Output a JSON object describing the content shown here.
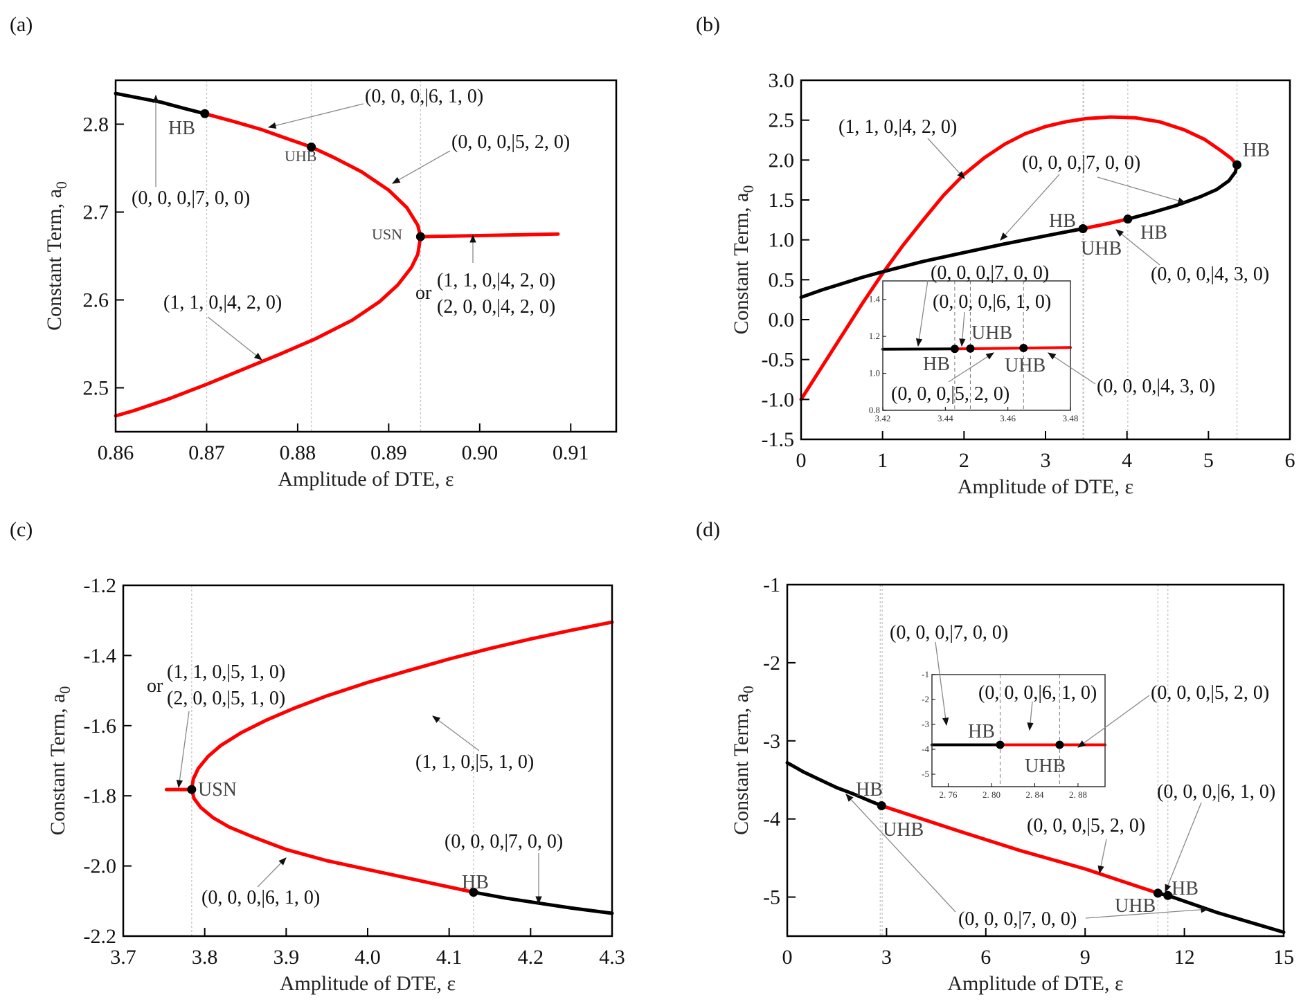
{
  "colors": {
    "stable": "#000000",
    "unstable": "#ff0000",
    "guide": "#c8c8c8",
    "arrow": "#888888"
  },
  "chart_data": [
    {
      "panel": "(a)",
      "type": "line",
      "xlabel": "Amplitude of DTE, ε",
      "ylabel": "Constant Term, a",
      "ylabel_sub": "0",
      "xlim": [
        0.86,
        0.915
      ],
      "ylim": [
        2.45,
        2.85
      ],
      "xticks": [
        0.86,
        0.87,
        0.88,
        0.89,
        0.9,
        0.91
      ],
      "xtick_labels": [
        "0.86",
        "0.87",
        "0.88",
        "0.89",
        "0.90",
        "0.91"
      ],
      "yticks": [
        2.5,
        2.6,
        2.7,
        2.8
      ],
      "ytick_labels": [
        "2.5",
        "2.6",
        "2.7",
        "2.8"
      ],
      "guides_x": [
        0.87,
        0.8815,
        0.8935
      ],
      "series": [
        {
          "name": "stable",
          "color": "stable",
          "points": [
            [
              0.86,
              2.835
            ],
            [
              0.8625,
              2.83
            ],
            [
              0.865,
              2.825
            ],
            [
              0.8675,
              2.818
            ],
            [
              0.8698,
              2.812
            ]
          ]
        },
        {
          "name": "unstable-upper",
          "color": "unstable",
          "points": [
            [
              0.8698,
              2.812
            ],
            [
              0.873,
              2.803
            ],
            [
              0.876,
              2.794
            ],
            [
              0.879,
              2.783
            ],
            [
              0.8815,
              2.774
            ],
            [
              0.884,
              2.762
            ],
            [
              0.887,
              2.746
            ],
            [
              0.89,
              2.725
            ],
            [
              0.892,
              2.705
            ],
            [
              0.8932,
              2.685
            ],
            [
              0.8935,
              2.672
            ]
          ]
        },
        {
          "name": "unstable-lower",
          "color": "unstable",
          "points": [
            [
              0.8935,
              2.672
            ],
            [
              0.8932,
              2.652
            ],
            [
              0.8925,
              2.637
            ],
            [
              0.891,
              2.617
            ],
            [
              0.889,
              2.598
            ],
            [
              0.886,
              2.577
            ],
            [
              0.882,
              2.556
            ],
            [
              0.878,
              2.538
            ],
            [
              0.874,
              2.521
            ],
            [
              0.87,
              2.504
            ],
            [
              0.866,
              2.488
            ],
            [
              0.862,
              2.474
            ],
            [
              0.86,
              2.468
            ]
          ]
        },
        {
          "name": "unstable-branch",
          "color": "unstable",
          "points": [
            [
              0.8935,
              2.672
            ],
            [
              0.9086,
              2.675
            ]
          ]
        }
      ],
      "markers": [
        {
          "x": 0.8698,
          "y": 2.812,
          "label": "HB"
        },
        {
          "x": 0.8815,
          "y": 2.774,
          "label": "UHB"
        },
        {
          "x": 0.8935,
          "y": 2.672,
          "label": "USN"
        }
      ],
      "annotations": [
        {
          "text": "(0, 0, 0,|6, 1, 0)"
        },
        {
          "text": "(0, 0, 0,|5, 2, 0)"
        },
        {
          "text": "(0, 0, 0,|7, 0, 0)"
        },
        {
          "text": "(1, 1, 0,|4, 2, 0)"
        },
        {
          "text": "or"
        },
        {
          "text": "(1, 1, 0,|4, 2, 0)"
        },
        {
          "text": "(2, 0, 0,|4, 2, 0)"
        }
      ]
    },
    {
      "panel": "(b)",
      "type": "line",
      "xlabel": "Amplitude of DTE, ε",
      "ylabel": "Constant Term, a",
      "ylabel_sub": "0",
      "xlim": [
        0,
        6
      ],
      "ylim": [
        -1.5,
        3.0
      ],
      "xticks": [
        0,
        1,
        2,
        3,
        4,
        5,
        6
      ],
      "xtick_labels": [
        "0",
        "1",
        "2",
        "3",
        "4",
        "5",
        "6"
      ],
      "yticks": [
        -1.5,
        -1.0,
        -0.5,
        0.0,
        0.5,
        1.0,
        1.5,
        2.0,
        2.5,
        3.0
      ],
      "ytick_labels": [
        "-1.5",
        "-1.0",
        "-0.5",
        "0.0",
        "0.5",
        "1.0",
        "1.5",
        "2.0",
        "2.5",
        "3.0"
      ],
      "guides_x": [
        3.46,
        3.47,
        4.01,
        5.35
      ],
      "series": [
        {
          "name": "unstable-loop",
          "color": "unstable",
          "points": [
            [
              0,
              -1.0
            ],
            [
              0.25,
              -0.6
            ],
            [
              0.5,
              -0.2
            ],
            [
              0.75,
              0.2
            ],
            [
              1.0,
              0.58
            ],
            [
              1.25,
              0.93
            ],
            [
              1.5,
              1.25
            ],
            [
              1.75,
              1.56
            ],
            [
              2.0,
              1.82
            ],
            [
              2.25,
              2.03
            ],
            [
              2.5,
              2.2
            ],
            [
              2.75,
              2.33
            ],
            [
              3.0,
              2.42
            ],
            [
              3.25,
              2.48
            ],
            [
              3.5,
              2.52
            ],
            [
              3.8,
              2.54
            ],
            [
              4.1,
              2.53
            ],
            [
              4.4,
              2.48
            ],
            [
              4.7,
              2.38
            ],
            [
              4.95,
              2.26
            ],
            [
              5.15,
              2.12
            ],
            [
              5.28,
              2.02
            ],
            [
              5.35,
              1.94
            ]
          ]
        },
        {
          "name": "stable-lower",
          "color": "stable",
          "points": [
            [
              0,
              0.28
            ],
            [
              0.25,
              0.37
            ],
            [
              0.5,
              0.45
            ],
            [
              0.75,
              0.53
            ],
            [
              1.0,
              0.6
            ],
            [
              1.5,
              0.73
            ],
            [
              2.0,
              0.84
            ],
            [
              2.5,
              0.95
            ],
            [
              3.0,
              1.05
            ],
            [
              3.46,
              1.14
            ]
          ]
        },
        {
          "name": "unstable-mid",
          "color": "unstable",
          "points": [
            [
              3.46,
              1.14
            ],
            [
              3.75,
              1.2
            ],
            [
              4.01,
              1.26
            ]
          ]
        },
        {
          "name": "stable-upper",
          "color": "stable",
          "points": [
            [
              4.01,
              1.26
            ],
            [
              4.3,
              1.34
            ],
            [
              4.6,
              1.43
            ],
            [
              4.9,
              1.54
            ],
            [
              5.1,
              1.63
            ],
            [
              5.25,
              1.74
            ],
            [
              5.33,
              1.85
            ],
            [
              5.35,
              1.94
            ]
          ]
        }
      ],
      "markers": [
        {
          "x": 3.46,
          "y": 1.14,
          "label": "HB"
        },
        {
          "x": 4.01,
          "y": 1.26,
          "label": "HB"
        },
        {
          "x": 5.35,
          "y": 1.94,
          "label": "HB"
        }
      ],
      "marker_labels_extra": [
        "UHB"
      ],
      "annotations": [
        {
          "text": "(1, 1, 0,|4, 2, 0)"
        },
        {
          "text": "(0, 0, 0,|7, 0, 0)"
        },
        {
          "text": "(0, 0, 0,|4, 3, 0)"
        }
      ],
      "inset": {
        "xlim": [
          3.42,
          3.48
        ],
        "ylim": [
          0.8,
          1.5
        ],
        "xticks": [
          3.42,
          3.44,
          3.46,
          3.48
        ],
        "xtick_labels": [
          "3.42",
          "3.44",
          "3.46",
          "3.48"
        ],
        "yticks": [
          0.8,
          1.0,
          1.2,
          1.4
        ],
        "ytick_labels": [
          "0.8",
          "1.0",
          "1.2",
          "1.4"
        ],
        "guides_x": [
          3.443,
          3.448,
          3.465
        ],
        "series": [
          {
            "name": "stable",
            "color": "stable",
            "points": [
              [
                3.42,
                1.13
              ],
              [
                3.443,
                1.132
              ]
            ]
          },
          {
            "name": "unstable",
            "color": "unstable",
            "points": [
              [
                3.443,
                1.132
              ],
              [
                3.48,
                1.14
              ]
            ]
          }
        ],
        "markers": [
          {
            "x": 3.443,
            "y": 1.132,
            "label": "HB"
          },
          {
            "x": 3.448,
            "y": 1.134,
            "label": "UHB"
          },
          {
            "x": 3.465,
            "y": 1.137,
            "label": "UHB"
          }
        ],
        "annotations": [
          {
            "text": "(0, 0, 0,|7, 0, 0)"
          },
          {
            "text": "(0, 0, 0,|6, 1, 0)"
          },
          {
            "text": "(0, 0, 0,|5, 2, 0)"
          },
          {
            "text": "(0, 0, 0,|4, 3, 0)"
          }
        ]
      }
    },
    {
      "panel": "(c)",
      "type": "line",
      "xlabel": "Amplitude of DTE, ε",
      "ylabel": "Constant Term, a",
      "ylabel_sub": "0",
      "xlim": [
        3.7,
        4.3
      ],
      "ylim": [
        -2.2,
        -1.2
      ],
      "xticks": [
        3.7,
        3.8,
        3.9,
        4.0,
        4.1,
        4.2,
        4.3
      ],
      "xtick_labels": [
        "3.7",
        "3.8",
        "3.9",
        "4.0",
        "4.1",
        "4.2",
        "4.3"
      ],
      "yticks": [
        -2.2,
        -2.0,
        -1.8,
        -1.6,
        -1.4,
        -1.2
      ],
      "ytick_labels": [
        "-2.2",
        "-2.0",
        "-1.8",
        "-1.6",
        "-1.4",
        "-1.2"
      ],
      "guides_x": [
        3.784,
        4.13
      ],
      "series": [
        {
          "name": "unstable-branch",
          "color": "unstable",
          "points": [
            [
              3.753,
              -1.782
            ],
            [
              3.784,
              -1.782
            ]
          ]
        },
        {
          "name": "unstable-upper",
          "color": "unstable",
          "points": [
            [
              3.784,
              -1.782
            ],
            [
              3.786,
              -1.752
            ],
            [
              3.792,
              -1.722
            ],
            [
              3.804,
              -1.688
            ],
            [
              3.82,
              -1.656
            ],
            [
              3.845,
              -1.62
            ],
            [
              3.875,
              -1.585
            ],
            [
              3.91,
              -1.55
            ],
            [
              3.95,
              -1.515
            ],
            [
              4.0,
              -1.477
            ],
            [
              4.05,
              -1.443
            ],
            [
              4.1,
              -1.41
            ],
            [
              4.15,
              -1.38
            ],
            [
              4.2,
              -1.353
            ],
            [
              4.25,
              -1.328
            ],
            [
              4.3,
              -1.305
            ]
          ]
        },
        {
          "name": "unstable-lower",
          "color": "unstable",
          "points": [
            [
              3.784,
              -1.782
            ],
            [
              3.787,
              -1.808
            ],
            [
              3.795,
              -1.833
            ],
            [
              3.81,
              -1.862
            ],
            [
              3.83,
              -1.889
            ],
            [
              3.86,
              -1.918
            ],
            [
              3.9,
              -1.953
            ],
            [
              3.95,
              -1.985
            ],
            [
              4.0,
              -2.01
            ],
            [
              4.05,
              -2.035
            ],
            [
              4.1,
              -2.06
            ],
            [
              4.13,
              -2.075
            ]
          ]
        },
        {
          "name": "stable",
          "color": "stable",
          "points": [
            [
              4.13,
              -2.075
            ],
            [
              4.17,
              -2.092
            ],
            [
              4.21,
              -2.106
            ],
            [
              4.25,
              -2.12
            ],
            [
              4.3,
              -2.135
            ]
          ]
        }
      ],
      "markers": [
        {
          "x": 3.784,
          "y": -1.782,
          "label": "USN"
        },
        {
          "x": 4.13,
          "y": -2.075,
          "label": "HB"
        }
      ],
      "annotations": [
        {
          "text": "or"
        },
        {
          "text": "(1, 1, 0,|5, 1, 0)"
        },
        {
          "text": "(2, 0, 0,|5, 1, 0)"
        },
        {
          "text": "(1, 1, 0,|5, 1, 0)"
        },
        {
          "text": "(0, 0, 0,|6, 1, 0)"
        },
        {
          "text": "(0, 0, 0,|7, 0, 0)"
        }
      ]
    },
    {
      "panel": "(d)",
      "type": "line",
      "xlabel": "Amplitude of DTE, ε",
      "ylabel": "Constant Term, a",
      "ylabel_sub": "0",
      "xlim": [
        0,
        15
      ],
      "ylim": [
        -5.5,
        -1
      ],
      "xticks": [
        0,
        3,
        6,
        9,
        12,
        15
      ],
      "xtick_labels": [
        "0",
        "3",
        "6",
        "9",
        "12",
        "15"
      ],
      "yticks": [
        -5,
        -4,
        -3,
        -2,
        -1
      ],
      "ytick_labels": [
        "-5",
        "-4",
        "-3",
        "-2",
        "-1"
      ],
      "guides_x": [
        2.81,
        2.87,
        11.2,
        11.5
      ],
      "series": [
        {
          "name": "stable-left",
          "color": "stable",
          "points": [
            [
              0,
              -3.28
            ],
            [
              0.5,
              -3.4
            ],
            [
              1.0,
              -3.5
            ],
            [
              1.5,
              -3.6
            ],
            [
              2.0,
              -3.68
            ],
            [
              2.5,
              -3.77
            ],
            [
              2.85,
              -3.83
            ]
          ]
        },
        {
          "name": "unstable",
          "color": "unstable",
          "points": [
            [
              2.85,
              -3.83
            ],
            [
              5,
              -4.13
            ],
            [
              7,
              -4.4
            ],
            [
              9,
              -4.64
            ],
            [
              11.2,
              -4.95
            ]
          ]
        },
        {
          "name": "stable-right",
          "color": "stable",
          "points": [
            [
              11.2,
              -4.95
            ],
            [
              11.5,
              -4.98
            ],
            [
              13,
              -5.2
            ],
            [
              15,
              -5.45
            ]
          ]
        }
      ],
      "markers": [
        {
          "x": 2.85,
          "y": -3.83,
          "label": "HB"
        },
        {
          "x": 11.2,
          "y": -4.95,
          "label": "UHB"
        },
        {
          "x": 11.5,
          "y": -4.98,
          "label": "HB"
        }
      ],
      "marker_labels_extra": [
        "UHB"
      ],
      "annotations": [
        {
          "text": "(0, 0, 0,|7, 0, 0)"
        },
        {
          "text": "(0, 0, 0,|5, 2, 0)"
        },
        {
          "text": "(0, 0, 0,|6, 1, 0)"
        },
        {
          "text": "(0, 0, 0,|7, 0, 0)"
        }
      ],
      "inset": {
        "xlim": [
          2.745,
          2.905
        ],
        "ylim": [
          -5.5,
          -1
        ],
        "xticks": [
          2.76,
          2.8,
          2.84,
          2.88
        ],
        "xtick_labels": [
          "2. 76",
          "2. 80",
          "2. 84",
          "2. 88"
        ],
        "yticks": [
          -5,
          -4,
          -3,
          -2,
          -1
        ],
        "ytick_labels": [
          "-5",
          "-4",
          "-3",
          "-2",
          "-1"
        ],
        "guides_x": [
          2.808,
          2.863
        ],
        "series": [
          {
            "name": "stable",
            "color": "stable",
            "points": [
              [
                2.745,
                -3.82
              ],
              [
                2.808,
                -3.82
              ]
            ]
          },
          {
            "name": "unstable",
            "color": "unstable",
            "points": [
              [
                2.808,
                -3.82
              ],
              [
                2.905,
                -3.82
              ]
            ]
          }
        ],
        "markers": [
          {
            "x": 2.808,
            "y": -3.82,
            "label": "HB"
          },
          {
            "x": 2.863,
            "y": -3.82,
            "label": "UHB"
          }
        ],
        "annotations": [
          {
            "text": "(0, 0, 0,|6, 1, 0)"
          },
          {
            "text": "(0, 0, 0,|5, 2, 0)"
          }
        ]
      }
    }
  ]
}
